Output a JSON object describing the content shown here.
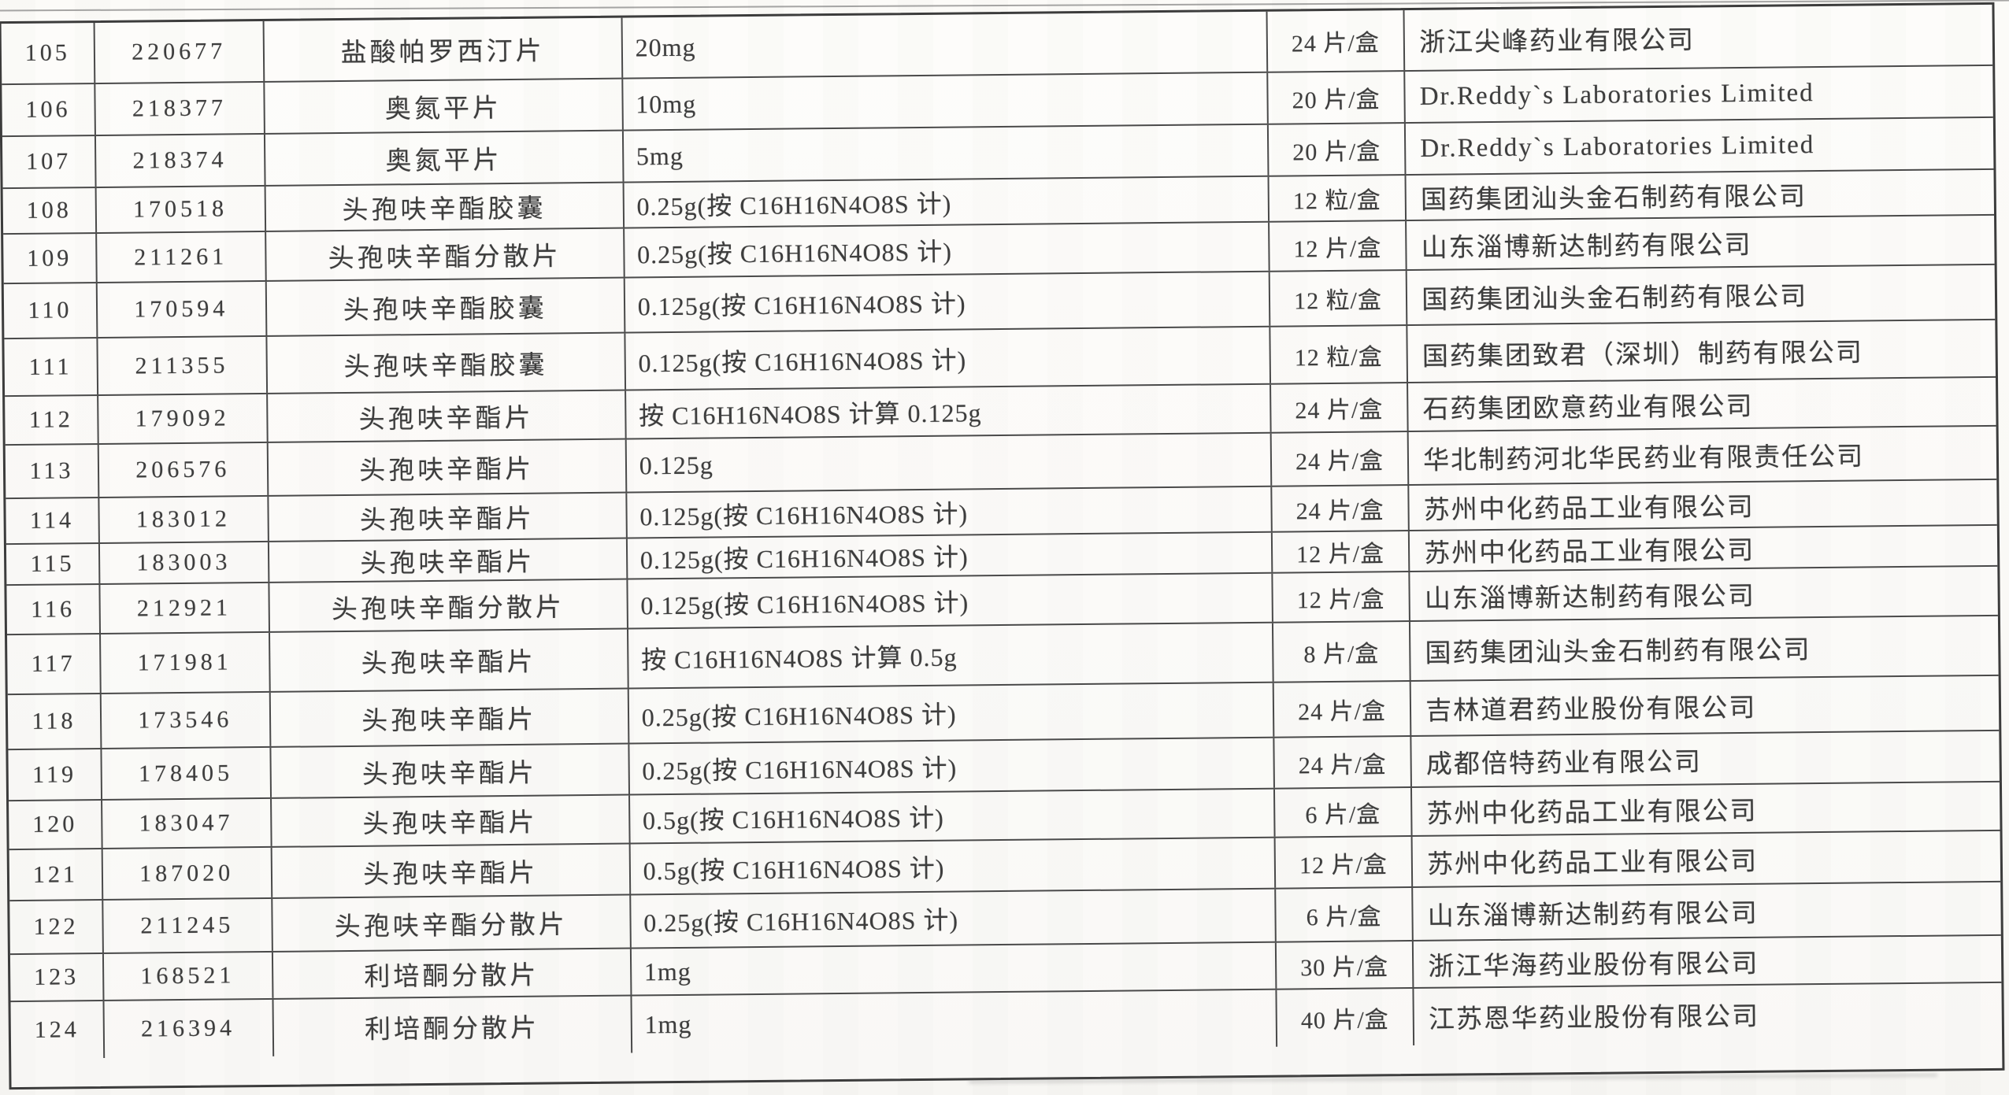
{
  "table": {
    "rows": [
      {
        "seq": "105",
        "code": "220677",
        "name": "盐酸帕罗西汀片",
        "spec": "20mg",
        "pack": "24 片/盒",
        "manufacturer": "浙江尖峰药业有限公司"
      },
      {
        "seq": "106",
        "code": "218377",
        "name": "奥氮平片",
        "spec": "10mg",
        "pack": "20 片/盒",
        "manufacturer": "Dr.Reddy`s Laboratories Limited"
      },
      {
        "seq": "107",
        "code": "218374",
        "name": "奥氮平片",
        "spec": "5mg",
        "pack": "20 片/盒",
        "manufacturer": "Dr.Reddy`s Laboratories Limited"
      },
      {
        "seq": "108",
        "code": "170518",
        "name": "头孢呋辛酯胶囊",
        "spec": "0.25g(按 C16H16N4O8S 计)",
        "pack": "12 粒/盒",
        "manufacturer": "国药集团汕头金石制药有限公司"
      },
      {
        "seq": "109",
        "code": "211261",
        "name": "头孢呋辛酯分散片",
        "spec": "0.25g(按 C16H16N4O8S 计)",
        "pack": "12 片/盒",
        "manufacturer": "山东淄博新达制药有限公司"
      },
      {
        "seq": "110",
        "code": "170594",
        "name": "头孢呋辛酯胶囊",
        "spec": "0.125g(按 C16H16N4O8S 计)",
        "pack": "12 粒/盒",
        "manufacturer": "国药集团汕头金石制药有限公司"
      },
      {
        "seq": "111",
        "code": "211355",
        "name": "头孢呋辛酯胶囊",
        "spec": "0.125g(按 C16H16N4O8S 计)",
        "pack": "12 粒/盒",
        "manufacturer": "国药集团致君（深圳）制药有限公司"
      },
      {
        "seq": "112",
        "code": "179092",
        "name": "头孢呋辛酯片",
        "spec": "按 C16H16N4O8S 计算 0.125g",
        "pack": "24 片/盒",
        "manufacturer": "石药集团欧意药业有限公司"
      },
      {
        "seq": "113",
        "code": "206576",
        "name": "头孢呋辛酯片",
        "spec": "0.125g",
        "pack": "24 片/盒",
        "manufacturer": "华北制药河北华民药业有限责任公司"
      },
      {
        "seq": "114",
        "code": "183012",
        "name": "头孢呋辛酯片",
        "spec": "0.125g(按 C16H16N4O8S 计)",
        "pack": "24 片/盒",
        "manufacturer": "苏州中化药品工业有限公司"
      },
      {
        "seq": "115",
        "code": "183003",
        "name": "头孢呋辛酯片",
        "spec": "0.125g(按 C16H16N4O8S 计)",
        "pack": "12 片/盒",
        "manufacturer": "苏州中化药品工业有限公司"
      },
      {
        "seq": "116",
        "code": "212921",
        "name": "头孢呋辛酯分散片",
        "spec": "0.125g(按 C16H16N4O8S 计)",
        "pack": "12 片/盒",
        "manufacturer": "山东淄博新达制药有限公司"
      },
      {
        "seq": "117",
        "code": "171981",
        "name": "头孢呋辛酯片",
        "spec": "按 C16H16N4O8S 计算 0.5g",
        "pack": "8 片/盒",
        "manufacturer": "国药集团汕头金石制药有限公司"
      },
      {
        "seq": "118",
        "code": "173546",
        "name": "头孢呋辛酯片",
        "spec": "0.25g(按 C16H16N4O8S 计)",
        "pack": "24 片/盒",
        "manufacturer": "吉林道君药业股份有限公司"
      },
      {
        "seq": "119",
        "code": "178405",
        "name": "头孢呋辛酯片",
        "spec": "0.25g(按 C16H16N4O8S 计)",
        "pack": "24 片/盒",
        "manufacturer": "成都倍特药业有限公司"
      },
      {
        "seq": "120",
        "code": "183047",
        "name": "头孢呋辛酯片",
        "spec": "0.5g(按 C16H16N4O8S 计)",
        "pack": "6 片/盒",
        "manufacturer": "苏州中化药品工业有限公司"
      },
      {
        "seq": "121",
        "code": "187020",
        "name": "头孢呋辛酯片",
        "spec": "0.5g(按 C16H16N4O8S 计)",
        "pack": "12 片/盒",
        "manufacturer": "苏州中化药品工业有限公司"
      },
      {
        "seq": "122",
        "code": "211245",
        "name": "头孢呋辛酯分散片",
        "spec": "0.25g(按 C16H16N4O8S 计)",
        "pack": "6 片/盒",
        "manufacturer": "山东淄博新达制药有限公司"
      },
      {
        "seq": "123",
        "code": "168521",
        "name": "利培酮分散片",
        "spec": "1mg",
        "pack": "30 片/盒",
        "manufacturer": "浙江华海药业股份有限公司"
      },
      {
        "seq": "124",
        "code": "216394",
        "name": "利培酮分散片",
        "spec": "1mg",
        "pack": "40 片/盒",
        "manufacturer": "江苏恩华药业股份有限公司"
      }
    ]
  }
}
